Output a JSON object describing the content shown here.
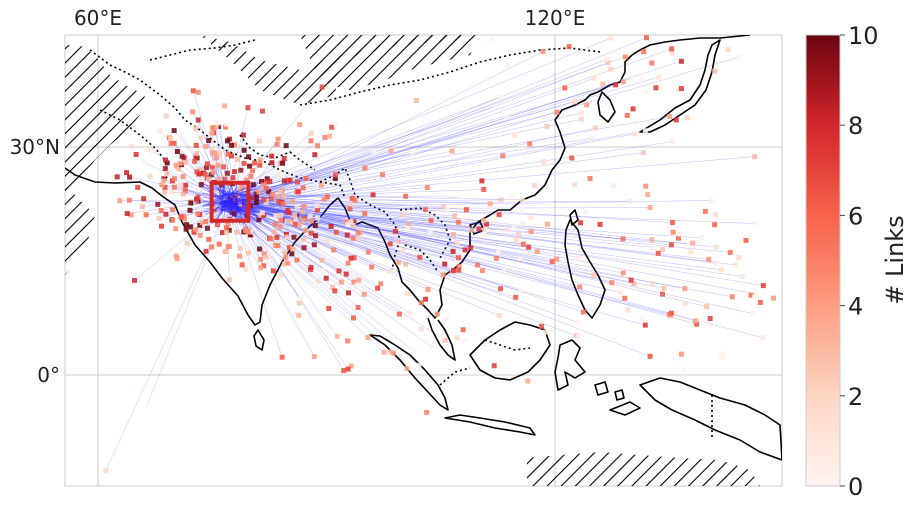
{
  "map": {
    "lon_range": [
      56,
      144
    ],
    "lat_range": [
      -14.5,
      45
    ],
    "lon_ticks": [
      {
        "value": 60,
        "label": "60°E"
      },
      {
        "value": 120,
        "label": "120°E"
      }
    ],
    "lat_ticks": [
      {
        "value": 30,
        "label": "30°N"
      },
      {
        "value": 0,
        "label": "0°"
      }
    ],
    "highlight_box": {
      "lon": [
        74,
        78.5
      ],
      "lat": [
        20.5,
        25.5
      ],
      "color": "#d62728"
    },
    "link_color": "#3b3bff",
    "land_outline_color": "#000000",
    "hatch_color": "#000000"
  },
  "colorbar": {
    "label": "# Links",
    "min": 0,
    "max": 10,
    "ticks": [
      0,
      2,
      4,
      6,
      8,
      10
    ],
    "colors": [
      "#fff5f0",
      "#fcbba1",
      "#fc9272",
      "#fb6a4a",
      "#ef3b2c",
      "#cb181d",
      "#67000d"
    ]
  }
}
